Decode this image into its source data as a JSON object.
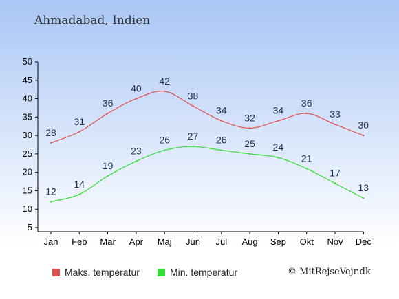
{
  "title": "Ahmadabad, Indien",
  "copyright": "© MitRejseVejr.dk",
  "chart_data": {
    "type": "line",
    "categories": [
      "Jan",
      "Feb",
      "Mar",
      "Apr",
      "Maj",
      "Jun",
      "Jul",
      "Aug",
      "Sep",
      "Okt",
      "Nov",
      "Dec"
    ],
    "series": [
      {
        "name": "Maks. temperatur",
        "color": "#e05050",
        "values": [
          28,
          31,
          36,
          40,
          42,
          38,
          34,
          32,
          34,
          36,
          33,
          30
        ]
      },
      {
        "name": "Min. temperatur",
        "color": "#33dd33",
        "values": [
          12,
          14,
          19,
          23,
          26,
          27,
          26,
          25,
          24,
          21,
          17,
          13
        ]
      }
    ],
    "yticks": [
      5,
      10,
      15,
      20,
      25,
      30,
      35,
      40,
      45,
      50
    ],
    "ylim": [
      5,
      50
    ],
    "legend": "bottom-left",
    "grid": false,
    "background_top": "#a9c6f5",
    "background_bottom": "#ffffff"
  }
}
